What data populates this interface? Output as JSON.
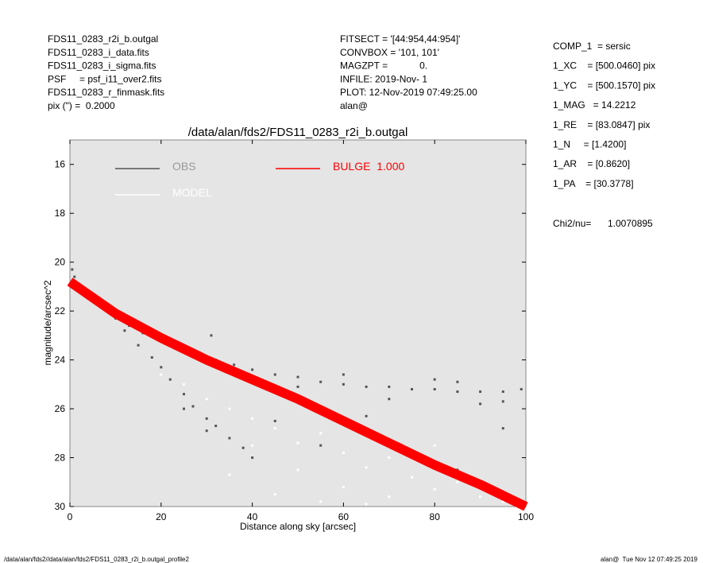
{
  "chart_data": {
    "type": "scatter",
    "title": "/data/alan/fds2/FDS11_0283_r2i_b.outgal",
    "x_label": "Distance along sky [arcsec]",
    "y_label": "magnitude/arcsec^2",
    "header_left": [
      "FDS11_0283_r2i_b.outgal",
      "FDS11_0283_i_data.fits",
      "FDS11_0283_i_sigma.fits",
      "PSF     = psf_i11_over2.fits",
      "FDS11_0283_r_finmask.fits",
      "pix (\") =  0.2000"
    ],
    "header_middle": [
      "FITSECT = '[44:954,44:954]'",
      "CONVBOX = '101, 101'",
      "MAGZPT =            0.",
      "INFILE: 2019-Nov- 1",
      "PLOT: 12-Nov-2019 07:49:25.00",
      "alan@"
    ],
    "header_right": [
      "COMP_1  = sersic",
      "1_XC    = [500.0460] pix",
      "1_YC    = [500.1570] pix",
      "1_MAG   = 14.2212",
      "1_RE    = [83.0847] pix",
      "1_N     = [1.4200]",
      "1_AR    = [0.8620]",
      "1_PA    = [30.3778]"
    ],
    "chi2_label": "Chi2/nu=",
    "chi2_value": "1.0070895",
    "footer_left": "/data/alan/fds2//data/alan/fds2/FDS11_0283_r2i_b.outgal_profile2",
    "footer_right": "alan@  Tue Nov 12 07:49:25 2019",
    "xlim": [
      0,
      100
    ],
    "xticks": [
      0,
      20,
      40,
      60,
      80,
      100
    ],
    "ylim": [
      30,
      15
    ],
    "yticks": [
      16,
      18,
      20,
      22,
      24,
      26,
      28,
      30
    ],
    "background": "#e5e5e5",
    "series": [
      {
        "name": "OBS",
        "color": "#555555",
        "kind": "points",
        "x": [
          0.5,
          1,
          2,
          4,
          6,
          8,
          10,
          13,
          16,
          20,
          24,
          28,
          32,
          36,
          40,
          45,
          50,
          55,
          60,
          65,
          70,
          75,
          80,
          85,
          90,
          95,
          99,
          60,
          70,
          80,
          90,
          50,
          85,
          95,
          12,
          15,
          18,
          20,
          22,
          25,
          27,
          30,
          32,
          35,
          38,
          40,
          30,
          25,
          31,
          45,
          55,
          65,
          75,
          85,
          95
        ],
        "values": [
          20.3,
          20.6,
          20.9,
          21.3,
          21.7,
          22.0,
          22.3,
          22.6,
          22.9,
          23.2,
          23.5,
          23.8,
          24.0,
          24.2,
          24.4,
          24.6,
          24.7,
          24.9,
          25.0,
          25.1,
          25.1,
          25.2,
          25.2,
          25.3,
          25.3,
          25.3,
          25.2,
          24.6,
          25.6,
          24.8,
          25.8,
          25.1,
          24.9,
          25.7,
          22.8,
          23.4,
          23.9,
          24.3,
          24.8,
          25.4,
          25.9,
          26.4,
          26.7,
          27.2,
          27.6,
          28.0,
          26.9,
          26.0,
          23.0,
          26.5,
          27.5,
          26.3,
          27.9,
          28.5,
          26.8
        ]
      },
      {
        "name": "MODEL",
        "color": "#ffffff",
        "kind": "points",
        "x": [
          25,
          30,
          35,
          40,
          45,
          50,
          55,
          60,
          65,
          70,
          75,
          80,
          85,
          90,
          95,
          40,
          50,
          60,
          70,
          35,
          45,
          55,
          20,
          65,
          80
        ],
        "values": [
          25.0,
          25.6,
          26.0,
          26.4,
          26.8,
          27.4,
          27.0,
          27.8,
          28.4,
          28.0,
          28.8,
          29.3,
          29.0,
          29.6,
          29.8,
          27.5,
          28.5,
          29.2,
          29.6,
          28.7,
          29.5,
          29.8,
          24.6,
          29.9,
          27.5
        ]
      },
      {
        "name": "BULGE  1.000",
        "color": "#ff0000",
        "kind": "band",
        "x": [
          0,
          10,
          20,
          30,
          40,
          50,
          60,
          70,
          80,
          90,
          100
        ],
        "values": [
          20.8,
          22.1,
          23.1,
          24.0,
          24.8,
          25.6,
          26.5,
          27.4,
          28.3,
          29.1,
          30.0
        ]
      }
    ]
  }
}
